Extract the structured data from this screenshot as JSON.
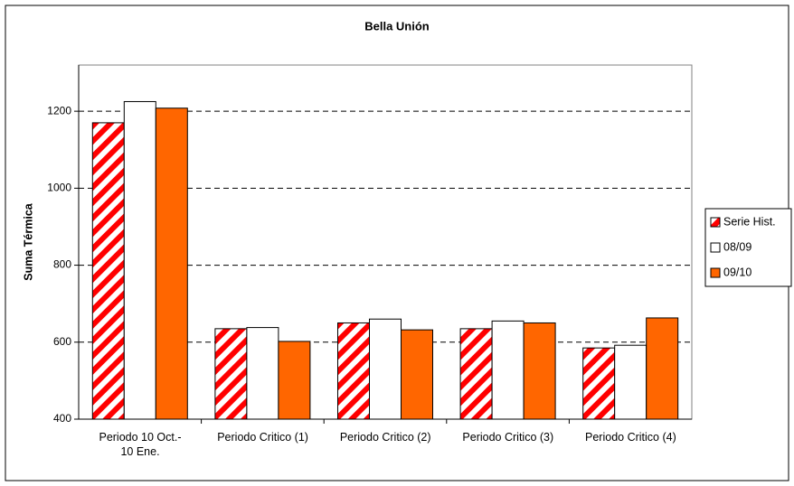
{
  "chart_data": {
    "type": "bar",
    "title": "Bella Unión",
    "y_label": "Suma Térmica",
    "categories": [
      "Periodo  10 Oct.-\n10 Ene.",
      "Periodo Critico (1)",
      "Periodo Critico (2)",
      "Periodo Critico (3)",
      "Periodo Critico (4)"
    ],
    "series": [
      {
        "name": "Serie Hist.",
        "color": "#ff0000",
        "pattern": "diagonal-stripes",
        "values": [
          1170,
          635,
          650,
          635,
          585
        ]
      },
      {
        "name": "08/09",
        "color": "#ffffff",
        "values": [
          1225,
          638,
          660,
          655,
          592
        ]
      },
      {
        "name": "09/10",
        "color": "#ff6600",
        "values": [
          1208,
          602,
          632,
          650,
          663
        ]
      }
    ],
    "ylim": [
      400,
      1320
    ],
    "yticks": [
      400,
      600,
      800,
      1000,
      1200
    ],
    "grid": true,
    "legend": "right"
  }
}
